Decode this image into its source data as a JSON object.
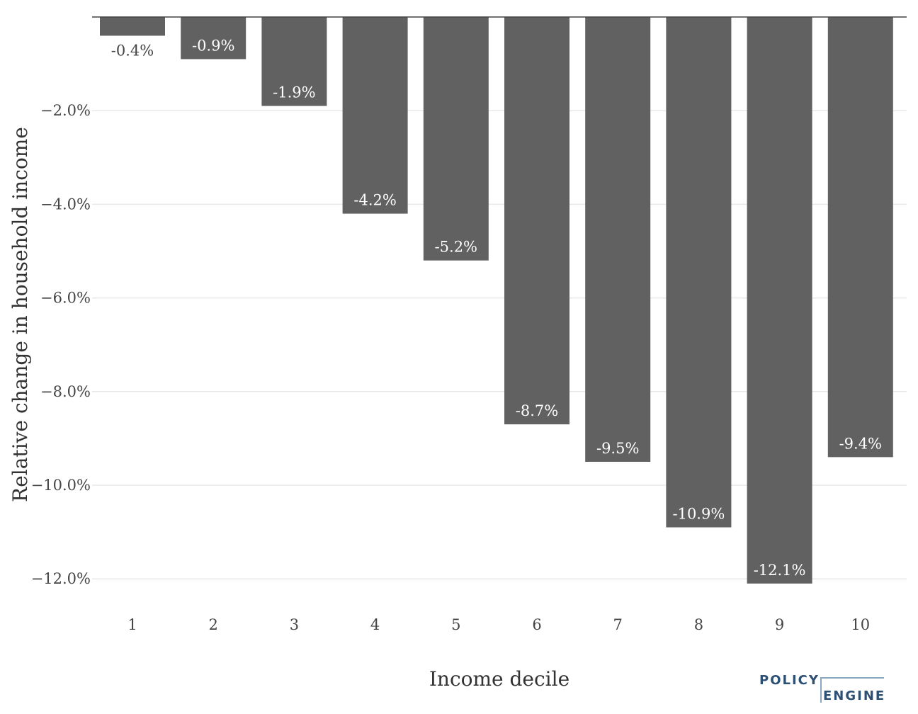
{
  "chart_data": {
    "type": "bar",
    "categories": [
      "1",
      "2",
      "3",
      "4",
      "5",
      "6",
      "7",
      "8",
      "9",
      "10"
    ],
    "values": [
      -0.4,
      -0.9,
      -1.9,
      -4.2,
      -5.2,
      -8.7,
      -9.5,
      -10.9,
      -12.1,
      -9.4
    ],
    "data_labels": [
      "-0.4%",
      "-0.9%",
      "-1.9%",
      "-4.2%",
      "-5.2%",
      "-8.7%",
      "-9.5%",
      "-10.9%",
      "-12.1%",
      "-9.4%"
    ],
    "xlabel": "Income decile",
    "ylabel": "Relative change in household income",
    "ylim": [
      -12.4,
      0
    ],
    "yticks": [
      -2,
      -4,
      -6,
      -8,
      -10,
      -12
    ],
    "ytick_labels": [
      "−2.0%",
      "−4.0%",
      "−6.0%",
      "−8.0%",
      "−10.0%",
      "−12.0%"
    ],
    "grid": true,
    "bar_color": "#616161"
  },
  "logo": {
    "line1": "POLICY",
    "line2": "ENGINE",
    "color": "#2c4f73"
  }
}
